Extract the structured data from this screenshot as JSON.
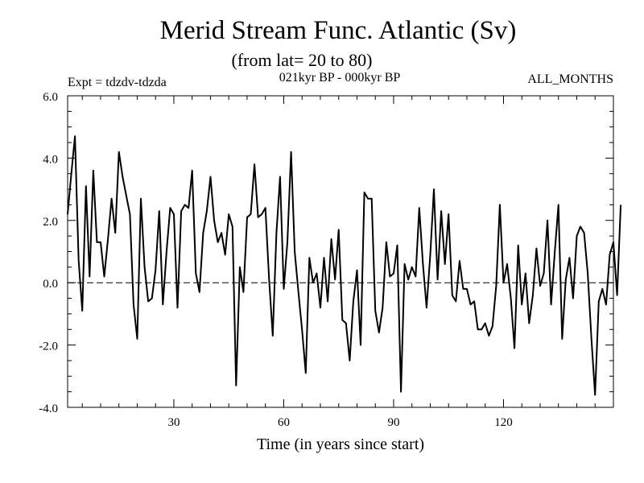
{
  "chart_data": {
    "type": "line",
    "title": "Merid Stream Func. Atlantic (Sv)",
    "subtitle": "(from lat= 20 to 80)",
    "header_left": "Expt = tdzdv-tdzda",
    "header_center": "021kyr BP - 000kyr BP",
    "header_right": "ALL_MONTHS",
    "xlabel": "Time (in years since start)",
    "ylabel": "",
    "xlim": [
      1,
      150
    ],
    "ylim": [
      -4.0,
      6.0
    ],
    "x_ticks": [
      30,
      60,
      90,
      120
    ],
    "x_tick_labels": [
      "30",
      "60",
      "90",
      "120"
    ],
    "y_ticks": [
      -4.0,
      -2.0,
      0.0,
      2.0,
      4.0,
      6.0
    ],
    "y_tick_labels": [
      "-4.0",
      "-2.0",
      "0.0",
      "2.0",
      "4.0",
      "6.0"
    ],
    "zero_line": 0.0,
    "series": [
      {
        "name": "Merid Stream Func. Atlantic",
        "x_start": 1,
        "x_step": 1,
        "values": [
          2.2,
          3.5,
          4.7,
          0.7,
          -0.9,
          3.1,
          0.2,
          3.6,
          1.3,
          1.3,
          0.2,
          1.4,
          2.7,
          1.6,
          4.2,
          3.4,
          2.8,
          2.2,
          -0.7,
          -1.8,
          2.7,
          0.5,
          -0.6,
          -0.5,
          0.4,
          2.3,
          -0.7,
          1.0,
          2.4,
          2.2,
          -0.8,
          2.3,
          2.5,
          2.4,
          3.6,
          0.3,
          -0.3,
          1.6,
          2.3,
          3.4,
          2.0,
          1.3,
          1.6,
          0.9,
          2.2,
          1.8,
          -3.3,
          0.5,
          -0.3,
          2.1,
          2.2,
          3.8,
          2.1,
          2.2,
          2.4,
          0.1,
          -1.7,
          1.6,
          3.4,
          -0.2,
          1.3,
          4.2,
          1.0,
          -0.3,
          -1.5,
          -2.9,
          0.8,
          0.0,
          0.3,
          -0.8,
          0.8,
          -0.6,
          1.4,
          0.1,
          1.7,
          -1.2,
          -1.3,
          -2.5,
          -0.6,
          0.4,
          -2.0,
          2.9,
          2.7,
          2.7,
          -0.9,
          -1.6,
          -0.8,
          1.3,
          0.2,
          0.3,
          1.2,
          -3.5,
          0.6,
          0.1,
          0.5,
          0.2,
          2.4,
          0.6,
          -0.8,
          0.9,
          3.0,
          0.1,
          2.3,
          0.6,
          2.2,
          -0.4,
          -0.6,
          0.7,
          -0.2,
          -0.2,
          -0.7,
          -0.6,
          -1.5,
          -1.5,
          -1.3,
          -1.7,
          -1.4,
          -0.1,
          2.5,
          0.0,
          0.6,
          -0.5,
          -2.1,
          1.2,
          -0.7,
          0.3,
          -1.3,
          -0.4,
          1.1,
          -0.1,
          0.3,
          2.0,
          -0.7,
          1.0,
          2.5,
          -1.8,
          0.1,
          0.8,
          -0.5,
          1.5,
          1.8,
          1.6,
          0.3,
          -1.8,
          -3.6,
          -0.6,
          -0.2,
          -0.7,
          0.9,
          1.3,
          -0.4,
          2.5
        ]
      }
    ]
  }
}
